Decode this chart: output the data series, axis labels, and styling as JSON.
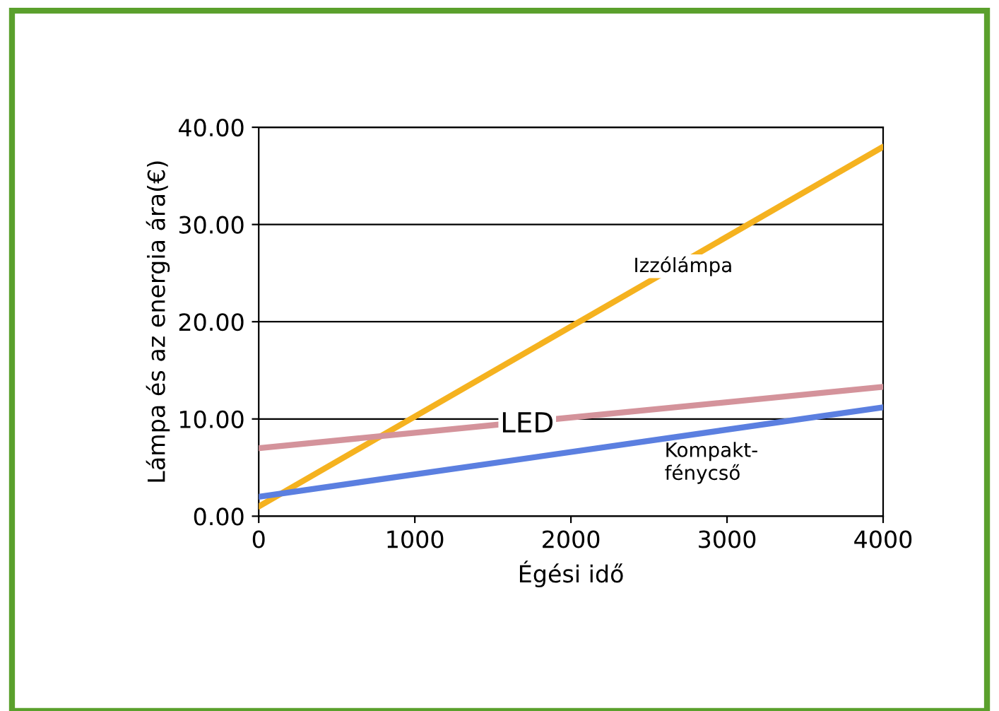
{
  "chart_data": {
    "type": "line",
    "xlabel": "Égési idő",
    "ylabel": "Lámpa és az energia ára(€)",
    "x": [
      0,
      4000
    ],
    "series": [
      {
        "name": "Izzólámpa",
        "color": "#f5b21f",
        "values": [
          1.0,
          38.0
        ]
      },
      {
        "name": "LED",
        "color": "#d4939b",
        "values": [
          7.0,
          13.3
        ]
      },
      {
        "name": "Kompakt-\nfénycső",
        "color": "#5b7fe0",
        "values": [
          2.0,
          11.2
        ]
      }
    ],
    "xlim": [
      0,
      4000
    ],
    "xticks": [
      0,
      1000,
      2000,
      3000,
      4000
    ],
    "ylim": [
      0,
      40
    ],
    "yticks": [
      {
        "value": 0,
        "label": "0.00"
      },
      {
        "value": 10,
        "label": "10.00"
      },
      {
        "value": 20,
        "label": "20.00"
      },
      {
        "value": 30,
        "label": "30.00"
      },
      {
        "value": 40,
        "label": "40.00"
      }
    ],
    "grid": "y",
    "legend": false,
    "marker": "none",
    "line_style": "solid"
  }
}
